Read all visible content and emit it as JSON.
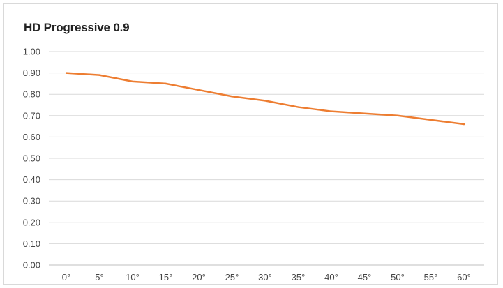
{
  "chart_data": {
    "type": "line",
    "title": "HD Progressive 0.9",
    "xlabel": "",
    "ylabel": "",
    "categories": [
      "0°",
      "5°",
      "10°",
      "15°",
      "20°",
      "25°",
      "30°",
      "35°",
      "40°",
      "45°",
      "50°",
      "55°",
      "60°"
    ],
    "series": [
      {
        "name": "",
        "values": [
          0.9,
          0.89,
          0.86,
          0.85,
          0.82,
          0.79,
          0.77,
          0.74,
          0.72,
          0.71,
          0.7,
          0.68,
          0.66
        ],
        "color": "#ED7D31"
      }
    ],
    "ylim": [
      0,
      1
    ],
    "yticks": [
      "0.00",
      "0.10",
      "0.20",
      "0.30",
      "0.40",
      "0.50",
      "0.60",
      "0.70",
      "0.80",
      "0.90",
      "1.00"
    ],
    "grid": true,
    "legend": "none",
    "colors": {
      "gridline": "#d9d9d9",
      "axis": "#bfbfbf",
      "label": "#444444"
    }
  }
}
